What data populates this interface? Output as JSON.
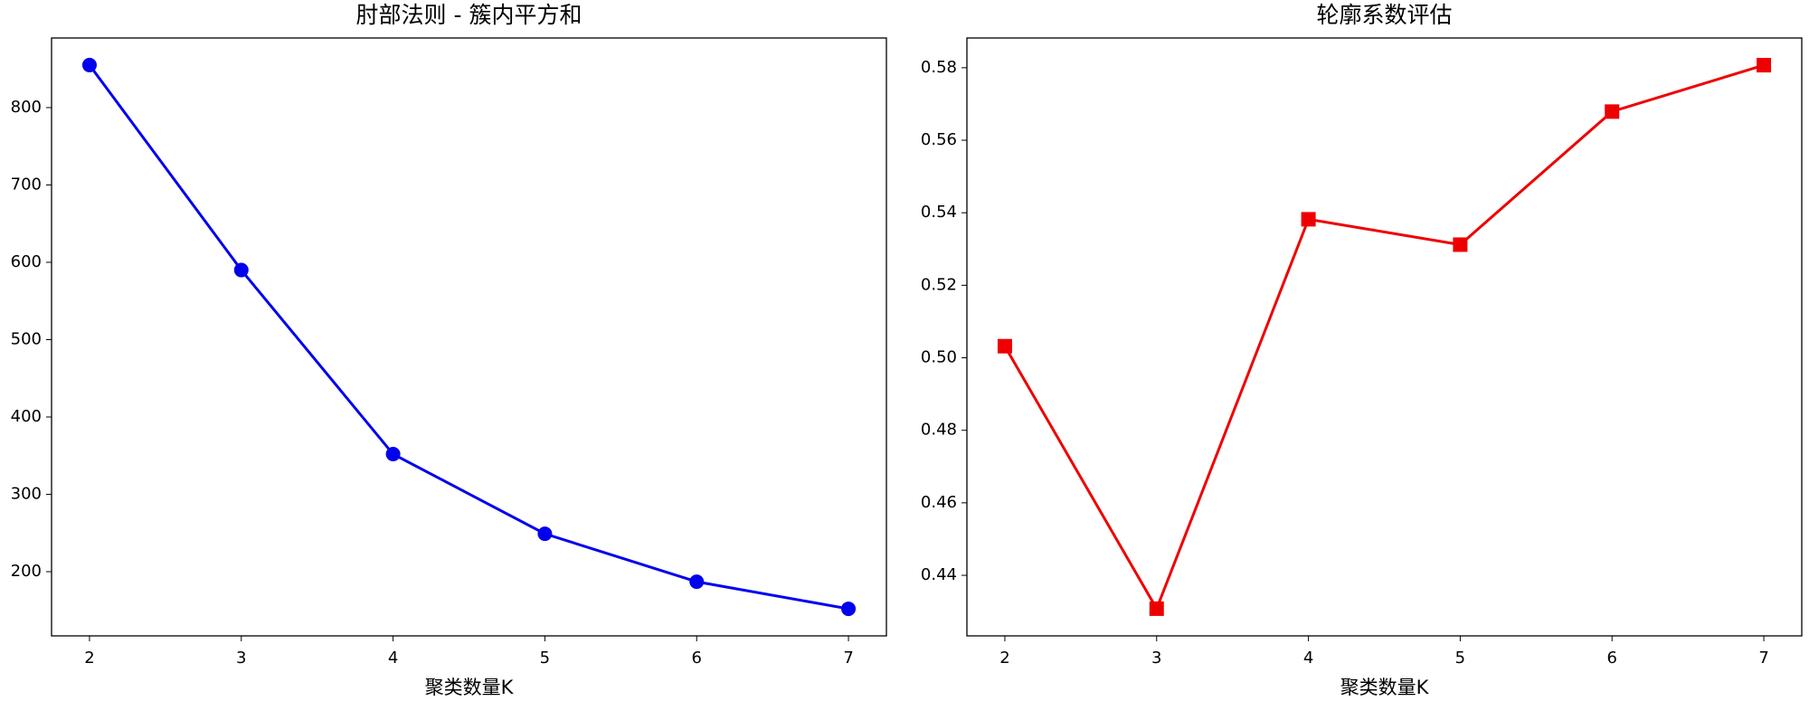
{
  "chart_data": [
    {
      "type": "line",
      "title": "肘部法则 - 簇内平方和",
      "xlabel": "聚类数量K",
      "x": [
        2,
        3,
        4,
        5,
        6,
        7
      ],
      "series": [
        {
          "color": "#0000ee",
          "marker": "circle",
          "values": [
            855,
            590,
            352,
            249,
            187,
            152
          ]
        }
      ],
      "xlim": [
        1.75,
        7.25
      ],
      "xticks": [
        2,
        3,
        4,
        5,
        6,
        7
      ],
      "ylim": [
        117,
        890
      ],
      "yticks": [
        200,
        300,
        400,
        500,
        600,
        700,
        800
      ]
    },
    {
      "type": "line",
      "title": "轮廓系数评估",
      "xlabel": "聚类数量K",
      "x": [
        2,
        3,
        4,
        5,
        6,
        7
      ],
      "series": [
        {
          "color": "#ee0000",
          "marker": "square",
          "values": [
            0.5032,
            0.4308,
            0.5382,
            0.5312,
            0.5679,
            0.5807
          ]
        }
      ],
      "xlim": [
        1.75,
        7.25
      ],
      "xticks": [
        2,
        3,
        4,
        5,
        6,
        7
      ],
      "ylim": [
        0.4233,
        0.5882
      ],
      "yticks": [
        0.44,
        0.46,
        0.48,
        {
          "value": 0.5,
          "label": "0.50"
        },
        0.52,
        0.54,
        0.56,
        0.58
      ]
    }
  ]
}
